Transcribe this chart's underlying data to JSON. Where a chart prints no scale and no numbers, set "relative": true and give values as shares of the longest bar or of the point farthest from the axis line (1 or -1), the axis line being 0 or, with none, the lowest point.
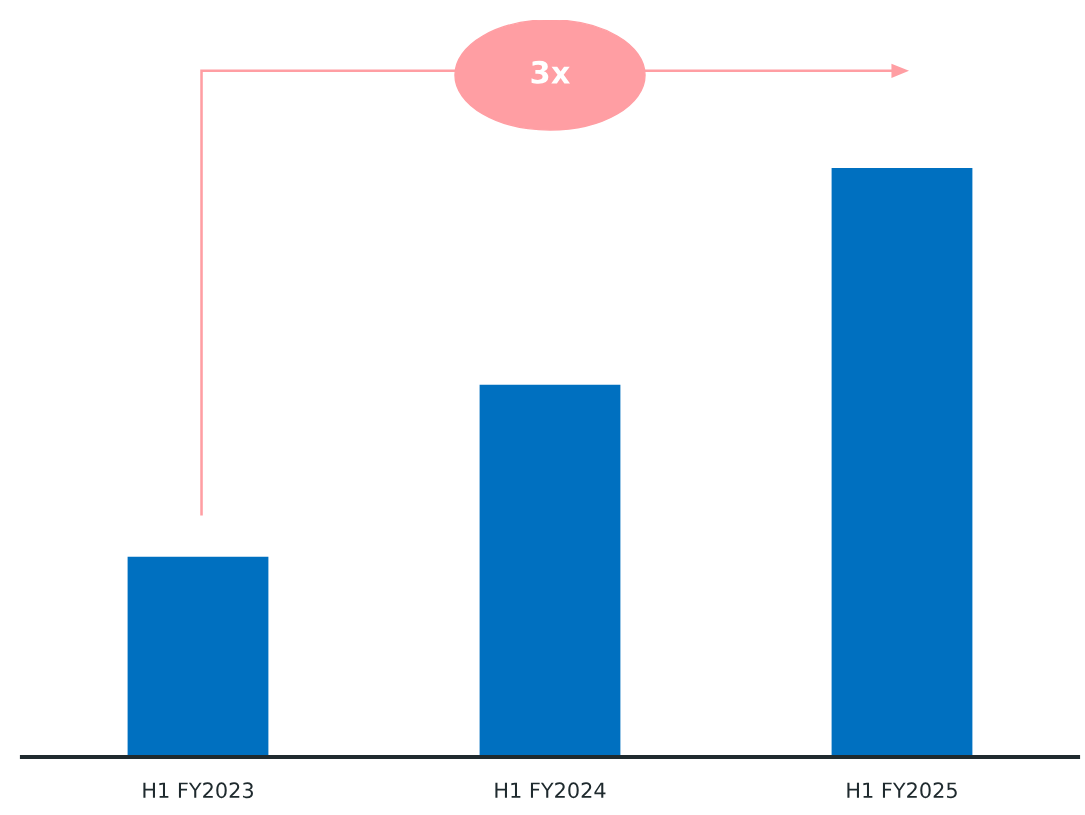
{
  "chart_data": {
    "type": "bar",
    "relative": true,
    "categories": [
      "H1 FY2023",
      "H1 FY2024",
      "H1 FY2025"
    ],
    "values": [
      0.34,
      0.632,
      1
    ],
    "color": "#0070c0",
    "annotations": [
      "3x"
    ],
    "grid": false,
    "legend": false
  }
}
